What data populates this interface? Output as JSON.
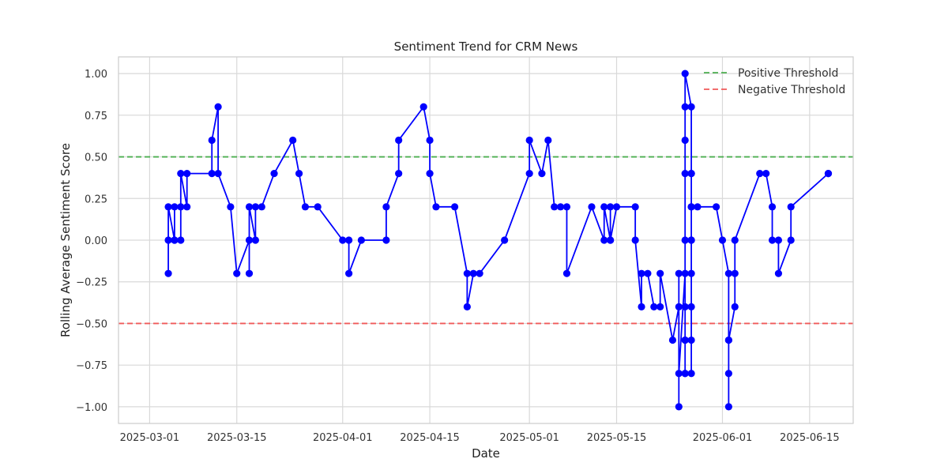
{
  "chart_data": {
    "type": "line",
    "title": "Sentiment Trend for CRM News",
    "xlabel": "Date",
    "ylabel": "Rolling Average Sentiment Score",
    "x_type": "date",
    "xlim": [
      "2025-02-24",
      "2025-06-22"
    ],
    "ylim": [
      -1.1,
      1.1
    ],
    "xticks": [
      "2025-03-01",
      "2025-03-15",
      "2025-04-01",
      "2025-04-15",
      "2025-05-01",
      "2025-05-15",
      "2025-06-01",
      "2025-06-15"
    ],
    "yticks": [
      -1.0,
      -0.75,
      -0.5,
      -0.25,
      0.0,
      0.25,
      0.5,
      0.75,
      1.0
    ],
    "ytick_labels": [
      "−1.00",
      "−0.75",
      "−0.50",
      "−0.25",
      "0.00",
      "0.25",
      "0.50",
      "0.75",
      "1.00"
    ],
    "grid": true,
    "legend_position": "top-right",
    "series": [
      {
        "color": "#0000ff",
        "marker": "circle",
        "points": [
          [
            "2025-03-04",
            -0.2
          ],
          [
            "2025-03-04",
            0.0
          ],
          [
            "2025-03-04",
            0.2
          ],
          [
            "2025-03-05",
            0.0
          ],
          [
            "2025-03-05",
            0.2
          ],
          [
            "2025-03-05",
            0.0
          ],
          [
            "2025-03-06",
            0.0
          ],
          [
            "2025-03-06",
            0.2
          ],
          [
            "2025-03-06",
            0.4
          ],
          [
            "2025-03-07",
            0.2
          ],
          [
            "2025-03-07",
            0.4
          ],
          [
            "2025-03-11",
            0.4
          ],
          [
            "2025-03-11",
            0.6
          ],
          [
            "2025-03-12",
            0.8
          ],
          [
            "2025-03-12",
            0.4
          ],
          [
            "2025-03-14",
            0.2
          ],
          [
            "2025-03-15",
            -0.2
          ],
          [
            "2025-03-17",
            0.0
          ],
          [
            "2025-03-17",
            -0.2
          ],
          [
            "2025-03-17",
            0.2
          ],
          [
            "2025-03-18",
            0.0
          ],
          [
            "2025-03-18",
            0.2
          ],
          [
            "2025-03-19",
            0.2
          ],
          [
            "2025-03-21",
            0.4
          ],
          [
            "2025-03-24",
            0.6
          ],
          [
            "2025-03-25",
            0.4
          ],
          [
            "2025-03-26",
            0.2
          ],
          [
            "2025-03-28",
            0.2
          ],
          [
            "2025-04-01",
            0.0
          ],
          [
            "2025-04-02",
            0.0
          ],
          [
            "2025-04-02",
            -0.2
          ],
          [
            "2025-04-04",
            0.0
          ],
          [
            "2025-04-08",
            0.0
          ],
          [
            "2025-04-08",
            0.2
          ],
          [
            "2025-04-10",
            0.4
          ],
          [
            "2025-04-10",
            0.6
          ],
          [
            "2025-04-14",
            0.8
          ],
          [
            "2025-04-15",
            0.6
          ],
          [
            "2025-04-15",
            0.4
          ],
          [
            "2025-04-16",
            0.2
          ],
          [
            "2025-04-19",
            0.2
          ],
          [
            "2025-04-21",
            -0.2
          ],
          [
            "2025-04-21",
            -0.4
          ],
          [
            "2025-04-22",
            -0.2
          ],
          [
            "2025-04-23",
            -0.2
          ],
          [
            "2025-04-27",
            0.0
          ],
          [
            "2025-05-01",
            0.4
          ],
          [
            "2025-05-01",
            0.6
          ],
          [
            "2025-05-03",
            0.4
          ],
          [
            "2025-05-04",
            0.6
          ],
          [
            "2025-05-05",
            0.2
          ],
          [
            "2025-05-06",
            0.2
          ],
          [
            "2025-05-07",
            0.2
          ],
          [
            "2025-05-07",
            -0.2
          ],
          [
            "2025-05-11",
            0.2
          ],
          [
            "2025-05-13",
            0.0
          ],
          [
            "2025-05-13",
            0.2
          ],
          [
            "2025-05-14",
            0.0
          ],
          [
            "2025-05-14",
            0.2
          ],
          [
            "2025-05-14",
            0.0
          ],
          [
            "2025-05-15",
            0.2
          ],
          [
            "2025-05-18",
            0.2
          ],
          [
            "2025-05-18",
            0.0
          ],
          [
            "2025-05-19",
            -0.4
          ],
          [
            "2025-05-19",
            -0.2
          ],
          [
            "2025-05-20",
            -0.2
          ],
          [
            "2025-05-21",
            -0.4
          ],
          [
            "2025-05-22",
            -0.4
          ],
          [
            "2025-05-22",
            -0.2
          ],
          [
            "2025-05-24",
            -0.6
          ],
          [
            "2025-05-25",
            -0.4
          ],
          [
            "2025-05-25",
            -0.2
          ],
          [
            "2025-05-25",
            -1.0
          ],
          [
            "2025-05-25",
            -0.8
          ],
          [
            "2025-05-26",
            -0.2
          ],
          [
            "2025-05-26",
            -0.6
          ],
          [
            "2025-05-26",
            -0.8
          ],
          [
            "2025-05-26",
            -0.4
          ],
          [
            "2025-05-26",
            -0.6
          ],
          [
            "2025-05-26",
            -0.8
          ],
          [
            "2025-05-26",
            0.0
          ],
          [
            "2025-05-26",
            0.4
          ],
          [
            "2025-05-26",
            0.6
          ],
          [
            "2025-05-26",
            0.8
          ],
          [
            "2025-05-26",
            1.0
          ],
          [
            "2025-05-27",
            0.8
          ],
          [
            "2025-05-27",
            0.4
          ],
          [
            "2025-05-27",
            0.0
          ],
          [
            "2025-05-27",
            -0.6
          ],
          [
            "2025-05-27",
            -0.8
          ],
          [
            "2025-05-27",
            -0.4
          ],
          [
            "2025-05-27",
            -0.2
          ],
          [
            "2025-05-27",
            0.0
          ],
          [
            "2025-05-27",
            0.2
          ],
          [
            "2025-05-27",
            0.4
          ],
          [
            "2025-05-27",
            0.2
          ],
          [
            "2025-05-28",
            0.2
          ],
          [
            "2025-05-31",
            0.2
          ],
          [
            "2025-06-01",
            0.0
          ],
          [
            "2025-06-02",
            -0.2
          ],
          [
            "2025-06-02",
            -0.6
          ],
          [
            "2025-06-02",
            -0.8
          ],
          [
            "2025-06-02",
            -1.0
          ],
          [
            "2025-06-02",
            -0.6
          ],
          [
            "2025-06-03",
            -0.4
          ],
          [
            "2025-06-03",
            -0.2
          ],
          [
            "2025-06-03",
            0.0
          ],
          [
            "2025-06-07",
            0.4
          ],
          [
            "2025-06-08",
            0.4
          ],
          [
            "2025-06-09",
            0.2
          ],
          [
            "2025-06-09",
            0.0
          ],
          [
            "2025-06-10",
            0.0
          ],
          [
            "2025-06-10",
            -0.2
          ],
          [
            "2025-06-12",
            0.0
          ],
          [
            "2025-06-12",
            0.2
          ],
          [
            "2025-06-18",
            0.4
          ],
          [
            "2025-06-18",
            0.4
          ]
        ]
      }
    ],
    "thresholds": [
      {
        "name": "Positive Threshold",
        "y": 0.5,
        "color": "#4caf50"
      },
      {
        "name": "Negative Threshold",
        "y": -0.5,
        "color": "#f05a5a"
      }
    ]
  }
}
